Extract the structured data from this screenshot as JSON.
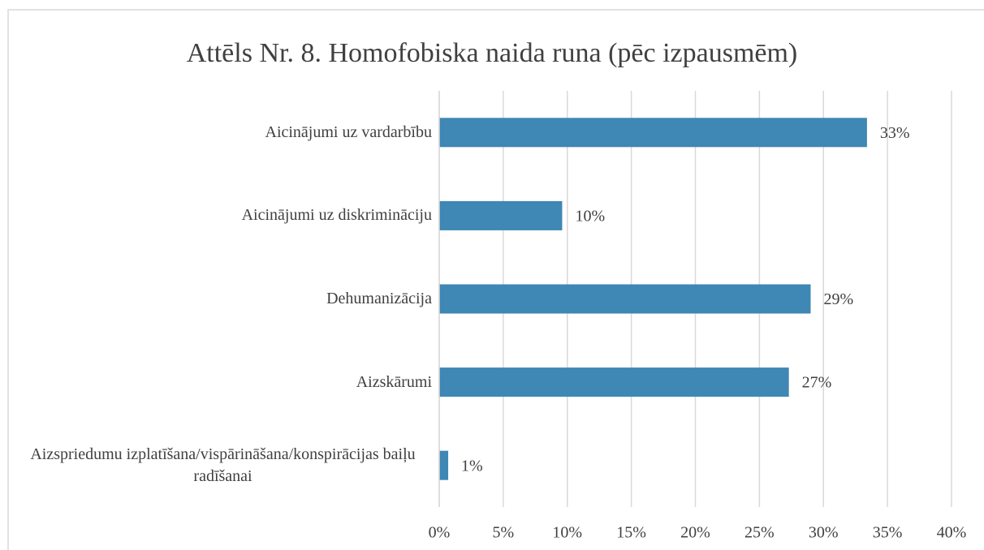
{
  "chart_data": {
    "type": "bar",
    "orientation": "horizontal",
    "title": "Attēls Nr. 8. Homofobiska naida runa (pēc izpausmēm)",
    "categories": [
      "Aicinājumi uz vardarbību",
      "Aicinājumi uz diskrimināciju",
      "Dehumanizācija",
      "Aizskārumi",
      "Aizspriedumu izplatīšana/vispārināšana/konspirācijas baiļu radīšanai"
    ],
    "values": [
      33.4,
      9.6,
      29,
      27.3,
      0.7
    ],
    "value_labels": [
      "33%",
      "10%",
      "29%",
      "27%",
      "1%"
    ],
    "color": "#3f87b4",
    "xlim": [
      0,
      40
    ],
    "xticks": [
      {
        "value": 0,
        "label": "0%"
      },
      {
        "value": 5,
        "label": "5%"
      },
      {
        "value": 10,
        "label": "10%"
      },
      {
        "value": 15,
        "label": "15%"
      },
      {
        "value": 20,
        "label": "20%"
      },
      {
        "value": 25,
        "label": "25%"
      },
      {
        "value": 30,
        "label": "30%"
      },
      {
        "value": 35,
        "label": "35%"
      },
      {
        "value": 40,
        "label": "40%"
      }
    ],
    "grid": true
  }
}
